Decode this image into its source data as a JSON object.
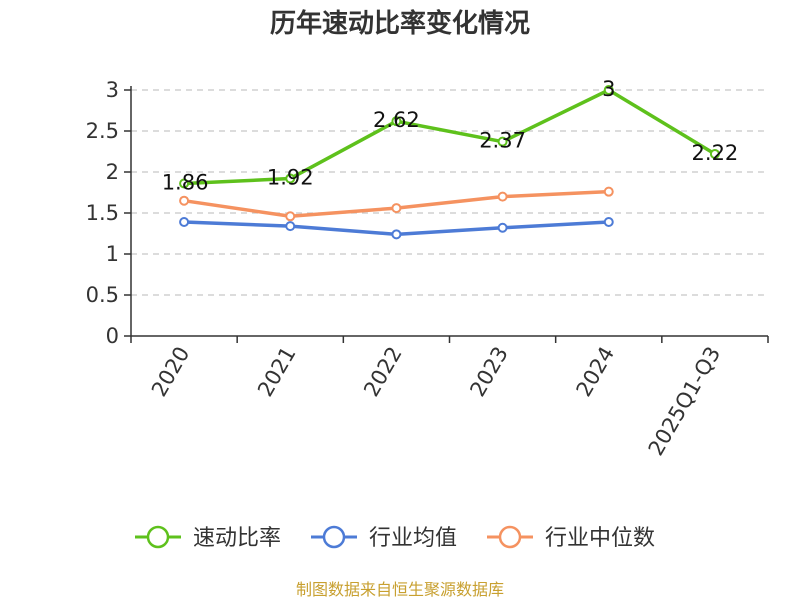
{
  "chart_data": {
    "type": "line",
    "title": "历年速动比率变化情况",
    "categories": [
      "2020",
      "2021",
      "2022",
      "2023",
      "2024",
      "2025Q1-Q3"
    ],
    "y_ticks": [
      "0",
      "0.5",
      "1",
      "1.5",
      "2",
      "2.5",
      "3"
    ],
    "ylim": [
      0,
      3
    ],
    "grid": true,
    "legend_position": "bottom",
    "series": [
      {
        "name": "速动比率",
        "color": "#5ec11c",
        "values": [
          1.86,
          1.92,
          2.62,
          2.37,
          3,
          2.22
        ],
        "labels": [
          "1.86",
          "1.92",
          "2.62",
          "2.37",
          "3",
          "2.22"
        ]
      },
      {
        "name": "行业均值",
        "color": "#4d7bd6",
        "values": [
          1.39,
          1.34,
          1.24,
          1.32,
          1.39,
          null
        ]
      },
      {
        "name": "行业中位数",
        "color": "#f59260",
        "values": [
          1.65,
          1.46,
          1.56,
          1.7,
          1.76,
          null
        ]
      }
    ]
  },
  "source": "制图数据来自恒生聚源数据库"
}
